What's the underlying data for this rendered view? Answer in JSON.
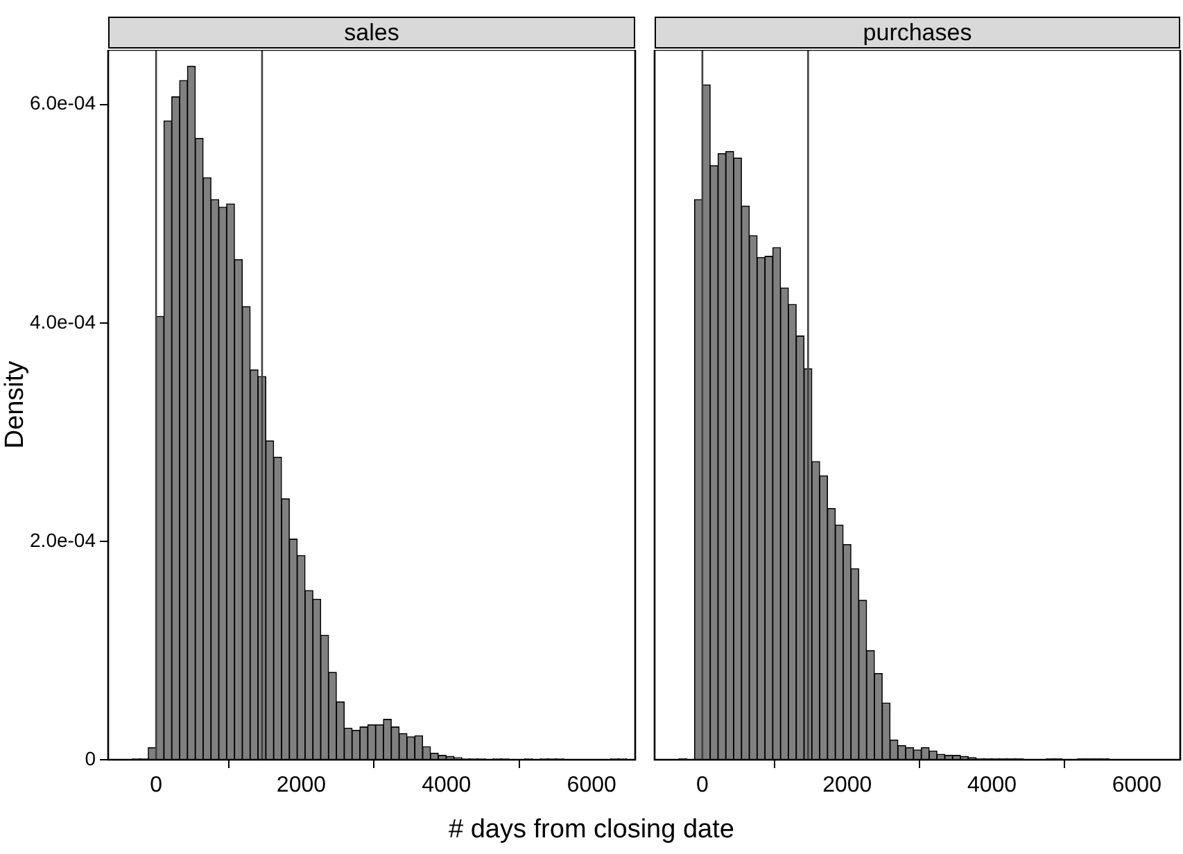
{
  "chart_data": [
    {
      "type": "histogram",
      "title": "sales",
      "xlabel": "# days from closing date",
      "ylabel": "Density",
      "color": "#808080",
      "bins": [
        -324,
        -216,
        -108,
        0,
        108,
        216,
        324,
        432,
        540,
        648,
        756,
        864,
        972,
        1080,
        1188,
        1296,
        1404,
        1512,
        1620,
        1728,
        1836,
        1944,
        2052,
        2160,
        2268,
        2376,
        2484,
        2592,
        2700,
        2808,
        2916,
        3024,
        3132,
        3240,
        3348,
        3456,
        3564,
        3672,
        3780,
        3888,
        3996,
        4104,
        4212,
        4320,
        4428,
        4536,
        4644,
        4752,
        4860,
        4968,
        5076,
        5184,
        5292,
        5400,
        5508,
        5616,
        5724,
        5832,
        5940,
        6048,
        6156,
        6264,
        6372,
        6480
      ],
      "values": [
        1e-06,
        1e-06,
        1.1e-05,
        0.000406,
        0.000585,
        0.000607,
        0.000622,
        0.000635,
        0.000569,
        0.000533,
        0.000513,
        0.000506,
        0.000509,
        0.000458,
        0.000415,
        0.000357,
        0.000351,
        0.000292,
        0.000277,
        0.000239,
        0.000202,
        0.000187,
        0.000155,
        0.000147,
        0.000114,
        8e-05,
        5.3e-05,
        2.9e-05,
        2.7e-05,
        3e-05,
        3.2e-05,
        3.2e-05,
        3.7e-05,
        3e-05,
        2.4e-05,
        2.1e-05,
        2.2e-05,
        1.2e-05,
        6e-06,
        4e-06,
        3e-06,
        2e-06,
        1e-06,
        1e-06,
        1e-06,
        0,
        1e-06,
        1e-06,
        0,
        0,
        1e-06,
        0,
        1e-06,
        1e-06,
        1e-06,
        0,
        0,
        0,
        0,
        0,
        0,
        1e-06,
        1e-06
      ],
      "xlim": [
        -660,
        6600
      ],
      "ylim": [
        0,
        0.00065
      ],
      "xticks": [
        0,
        2000,
        4000,
        6000
      ],
      "yticks": [
        {
          "value": 0,
          "label": "0"
        },
        {
          "value": 0.0002,
          "label": "2.0e-04"
        },
        {
          "value": 0.0004,
          "label": "4.0e-04"
        },
        {
          "value": 0.0006,
          "label": "6.0e-04"
        }
      ],
      "ref_lines": [
        {
          "axis": "x",
          "value": 0,
          "color": "#404040"
        },
        {
          "axis": "x",
          "value": 1460,
          "color": "#404040"
        }
      ]
    },
    {
      "type": "histogram",
      "title": "purchases",
      "color": "#808080",
      "bins": [
        -324,
        -216,
        -108,
        0,
        108,
        216,
        324,
        432,
        540,
        648,
        756,
        864,
        972,
        1080,
        1188,
        1296,
        1404,
        1512,
        1620,
        1728,
        1836,
        1944,
        2052,
        2160,
        2268,
        2376,
        2484,
        2592,
        2700,
        2808,
        2916,
        3024,
        3132,
        3240,
        3348,
        3456,
        3564,
        3672,
        3780,
        3888,
        3996,
        4104,
        4212,
        4320,
        4428,
        4536,
        4644,
        4752,
        4860,
        4968,
        5076,
        5184,
        5292,
        5400,
        5508,
        5616
      ],
      "values": [
        1e-06,
        0,
        0.000513,
        0.000618,
        0.000544,
        0.000555,
        0.000557,
        0.000551,
        0.000507,
        0.00048,
        0.00046,
        0.000461,
        0.000469,
        0.000432,
        0.000417,
        0.000388,
        0.000358,
        0.000273,
        0.00026,
        0.00023,
        0.000215,
        0.000197,
        0.000175,
        0.000146,
        0.0001,
        7.9e-05,
        5.2e-05,
        1.8e-05,
        1.3e-05,
        1.1e-05,
        9e-06,
        1.1e-05,
        8e-06,
        5e-06,
        4e-06,
        4e-06,
        3e-06,
        2e-06,
        1e-06,
        1e-06,
        1e-06,
        1e-06,
        1e-06,
        1e-06,
        0,
        0,
        0,
        1e-06,
        1e-06,
        0,
        0,
        1e-06,
        1e-06,
        1e-06,
        1e-06
      ],
      "xlim": [
        -660,
        6600
      ],
      "ylim": [
        0,
        0.00065
      ],
      "xticks": [
        0,
        2000,
        4000,
        6000
      ],
      "tick_labels": "x",
      "ref_lines": [
        {
          "axis": "x",
          "value": 0,
          "color": "#404040"
        },
        {
          "axis": "x",
          "value": 1460,
          "color": "#404040"
        }
      ]
    }
  ]
}
